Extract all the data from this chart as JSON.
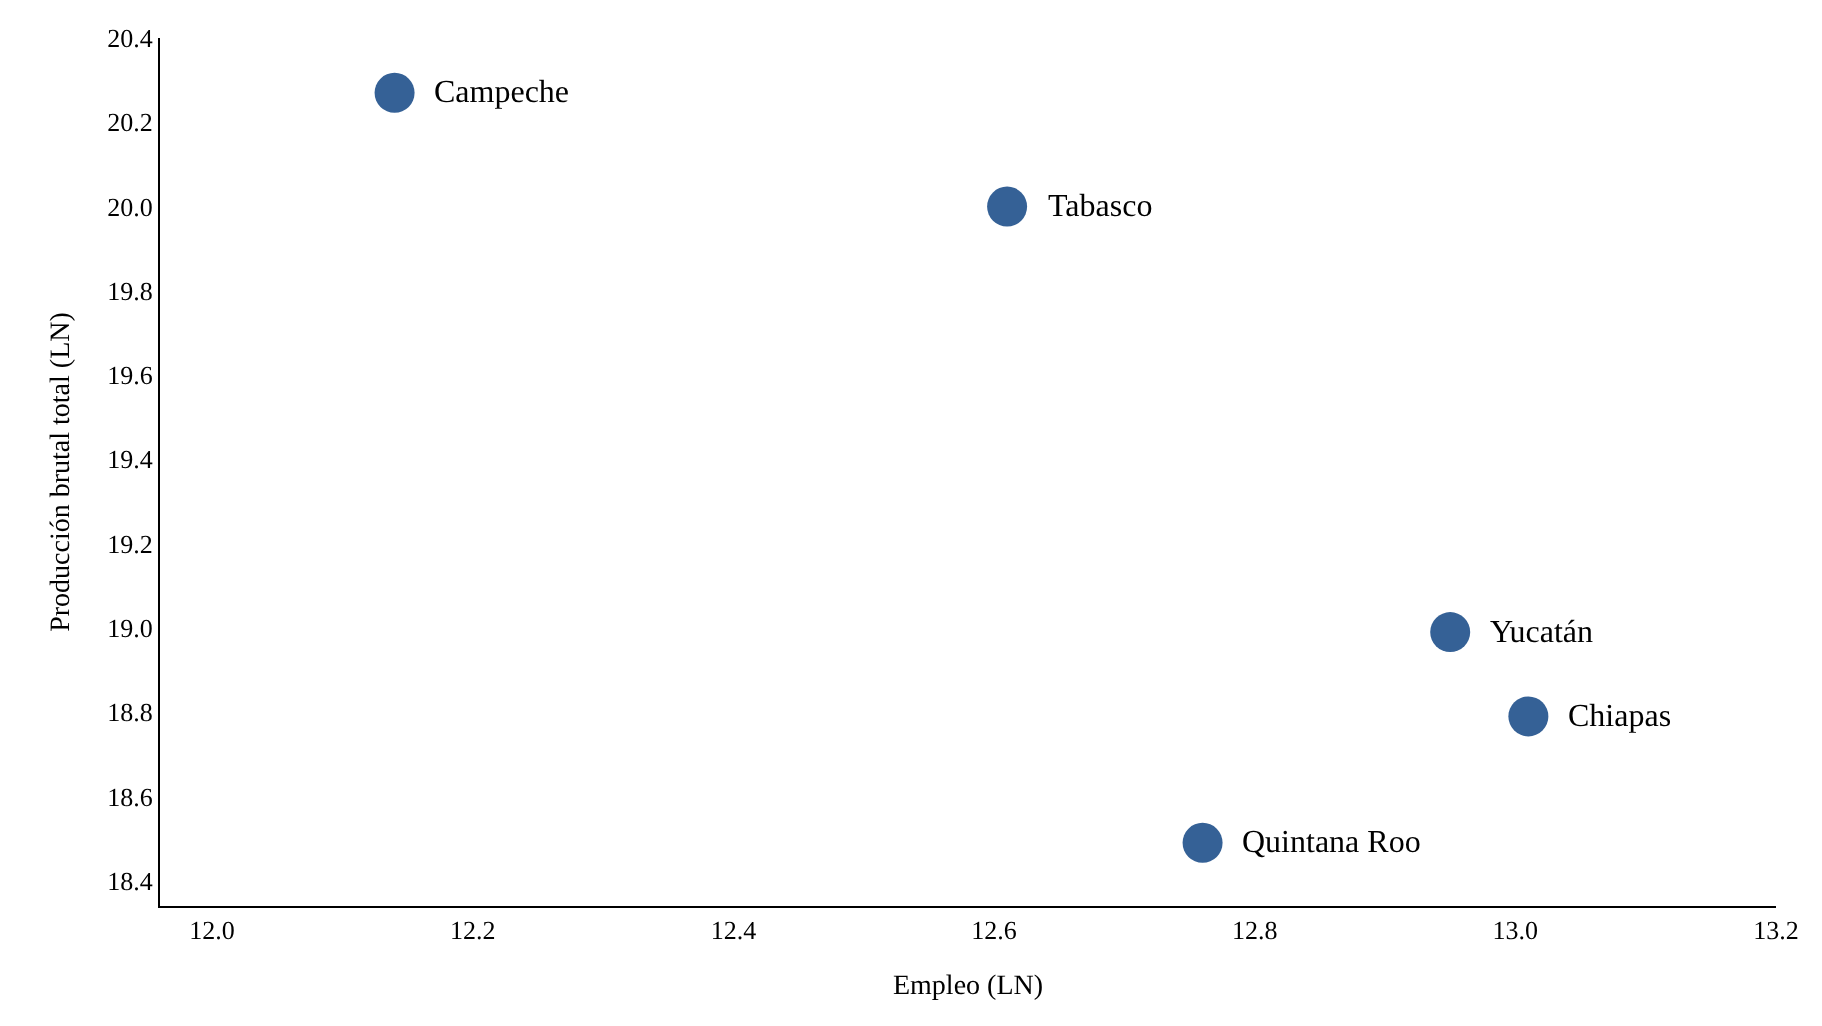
{
  "chart_data": {
    "type": "scatter",
    "xlabel": "Empleo (LN)",
    "ylabel": "Producción brutal total (LN)",
    "x": [
      12.14,
      12.61,
      12.95,
      13.01,
      12.76
    ],
    "series": [
      {
        "color": "#356196",
        "values": [
          20.27,
          20.0,
          18.99,
          18.79,
          18.49
        ]
      }
    ],
    "annotations": [
      {
        "text": "Campeche",
        "x": 12.14,
        "y": 20.27
      },
      {
        "text": "Tabasco",
        "x": 12.61,
        "y": 20.0
      },
      {
        "text": "Yucatán",
        "x": 12.95,
        "y": 18.99
      },
      {
        "text": "Chiapas",
        "x": 13.01,
        "y": 18.79
      },
      {
        "text": "Quintana Roo",
        "x": 12.76,
        "y": 18.49
      }
    ],
    "xlim": [
      11.96,
      13.2
    ],
    "xticks": [
      {
        "value": 12.0,
        "label": "12.0"
      },
      12.2,
      12.4,
      12.6,
      12.8,
      {
        "value": 13.0,
        "label": "13.0"
      },
      13.2
    ],
    "ylim": [
      18.34,
      20.4
    ],
    "yticks": [
      18.4,
      18.6,
      18.8,
      {
        "value": 19.0,
        "label": "19.0"
      },
      19.2,
      19.4,
      19.6,
      19.8,
      {
        "value": 20.0,
        "label": "20.0"
      },
      20.2,
      20.4
    ],
    "legend": false,
    "marker": "circle"
  }
}
